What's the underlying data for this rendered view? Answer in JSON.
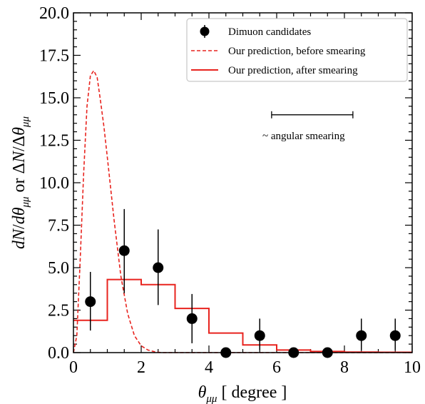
{
  "chart_data": {
    "type": "scatter",
    "xlabel": "θ_μμ  [ degree ]",
    "ylabel": "dN/dθ_μμ  or  ΔN/Δθ_μμ",
    "xlim": [
      0,
      10
    ],
    "ylim": [
      0,
      20
    ],
    "x_ticks": [
      "0",
      "2",
      "4",
      "6",
      "8",
      "10"
    ],
    "y_ticks": [
      "0.0",
      "2.5",
      "5.0",
      "7.5",
      "10.0",
      "12.5",
      "15.0",
      "17.5",
      "20.0"
    ],
    "legend_position": "top-right",
    "colors": {
      "data": "#000000",
      "prediction": "#e8231e"
    },
    "series": [
      {
        "name": "Dimuon candidates",
        "kind": "points_with_errors",
        "x": [
          0.5,
          1.5,
          2.5,
          3.5,
          4.5,
          5.5,
          6.5,
          7.5,
          8.5,
          9.5
        ],
        "y": [
          3,
          6,
          5,
          2,
          0,
          1,
          0,
          0,
          1,
          1
        ],
        "err_low": [
          1.7,
          2.5,
          2.2,
          1.45,
          0,
          0.85,
          0,
          0,
          0.85,
          0.85
        ],
        "err_high": [
          1.75,
          2.45,
          2.25,
          1.45,
          0,
          1.0,
          0,
          0,
          1.0,
          1.0
        ]
      },
      {
        "name": "Our prediction, before smearing",
        "kind": "dashed_line",
        "x": [
          0.0,
          0.1,
          0.2,
          0.3,
          0.4,
          0.5,
          0.6,
          0.7,
          0.8,
          0.9,
          1.0,
          1.2,
          1.4,
          1.6,
          1.8,
          2.0,
          2.2,
          2.4,
          2.6,
          3.0,
          10.0
        ],
        "y": [
          0.0,
          1.0,
          5.5,
          10.5,
          14.5,
          16.3,
          16.6,
          16.2,
          14.8,
          13.3,
          11.5,
          7.8,
          4.5,
          2.3,
          1.0,
          0.4,
          0.15,
          0.05,
          0.0,
          0.0,
          0.0
        ]
      },
      {
        "name": "Our prediction, after smearing",
        "kind": "step",
        "bin_edges": [
          0,
          1,
          2,
          3,
          4,
          5,
          6,
          7,
          8,
          9,
          10
        ],
        "values": [
          1.9,
          4.3,
          4.0,
          2.6,
          1.15,
          0.45,
          0.15,
          0.07,
          0.03,
          0.02
        ]
      }
    ],
    "annotation": {
      "text": "~ angular smearing",
      "bar_x": [
        5.85,
        8.25
      ],
      "bar_y": 14.0
    }
  }
}
